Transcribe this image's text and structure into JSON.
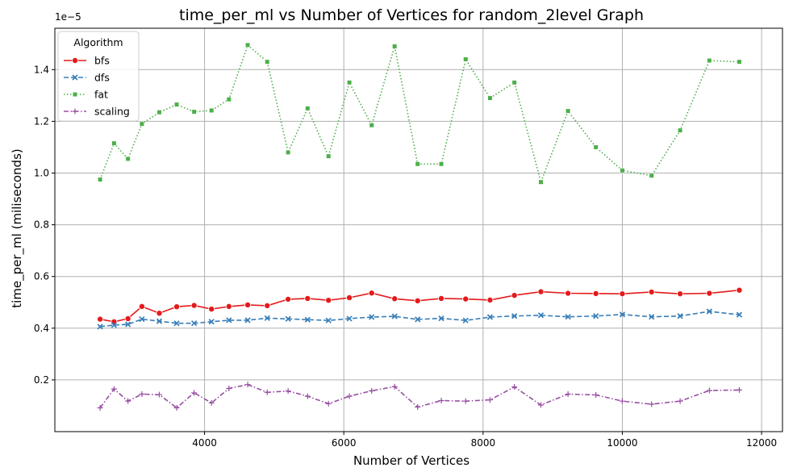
{
  "chart_data": {
    "type": "line",
    "title": "time_per_ml vs Number of Vertices for random_2level Graph",
    "xlabel": "Number of Vertices",
    "ylabel": "time_per_ml (miliseconds)",
    "y_scale_note": "1e−5",
    "xlim": [
      1850,
      12300
    ],
    "ylim": [
      0.0,
      1.56
    ],
    "x_ticks": [
      4000,
      6000,
      8000,
      10000,
      12000
    ],
    "y_ticks": [
      0.2,
      0.4,
      0.6,
      0.8,
      1.0,
      1.2,
      1.4
    ],
    "grid": true,
    "legend_title": "Algorithm",
    "legend_position": "top-left",
    "x": [
      2500,
      2700,
      2900,
      3100,
      3350,
      3600,
      3850,
      4100,
      4350,
      4620,
      4900,
      5200,
      5480,
      5780,
      6080,
      6400,
      6730,
      7060,
      7400,
      7750,
      8100,
      8450,
      8830,
      9220,
      9620,
      10000,
      10420,
      10830,
      11250,
      11680
    ],
    "series": [
      {
        "name": "bfs",
        "color": "#e41a1c",
        "line_style": "solid",
        "marker": "circle",
        "values": [
          0.435,
          0.425,
          0.437,
          0.484,
          0.458,
          0.483,
          0.488,
          0.474,
          0.484,
          0.49,
          0.487,
          0.512,
          0.515,
          0.508,
          0.518,
          0.536,
          0.514,
          0.506,
          0.515,
          0.513,
          0.509,
          0.527,
          0.541,
          0.535,
          0.534,
          0.533,
          0.54,
          0.533,
          0.535,
          0.547
        ]
      },
      {
        "name": "dfs",
        "color": "#377eb8",
        "line_style": "dashed",
        "marker": "x",
        "values": [
          0.406,
          0.412,
          0.415,
          0.435,
          0.427,
          0.419,
          0.419,
          0.425,
          0.431,
          0.431,
          0.439,
          0.436,
          0.433,
          0.43,
          0.437,
          0.443,
          0.446,
          0.434,
          0.438,
          0.43,
          0.443,
          0.447,
          0.45,
          0.444,
          0.447,
          0.453,
          0.444,
          0.447,
          0.465,
          0.452
        ]
      },
      {
        "name": "fat",
        "color": "#4daf4a",
        "line_style": "dotted",
        "marker": "square",
        "values": [
          0.975,
          1.115,
          1.055,
          1.19,
          1.235,
          1.265,
          1.237,
          1.242,
          1.285,
          1.495,
          1.43,
          1.08,
          1.25,
          1.065,
          1.35,
          1.185,
          1.49,
          1.035,
          1.035,
          1.44,
          1.29,
          1.35,
          0.965,
          1.24,
          1.1,
          1.01,
          0.99,
          1.165,
          1.435,
          1.43
        ]
      },
      {
        "name": "scaling",
        "color": "#984ea3",
        "line_style": "dashdot",
        "marker": "plus",
        "values": [
          0.092,
          0.165,
          0.118,
          0.145,
          0.143,
          0.092,
          0.15,
          0.111,
          0.167,
          0.182,
          0.152,
          0.157,
          0.137,
          0.108,
          0.137,
          0.158,
          0.174,
          0.095,
          0.12,
          0.118,
          0.123,
          0.173,
          0.103,
          0.145,
          0.142,
          0.118,
          0.106,
          0.118,
          0.159,
          0.161
        ]
      }
    ]
  }
}
